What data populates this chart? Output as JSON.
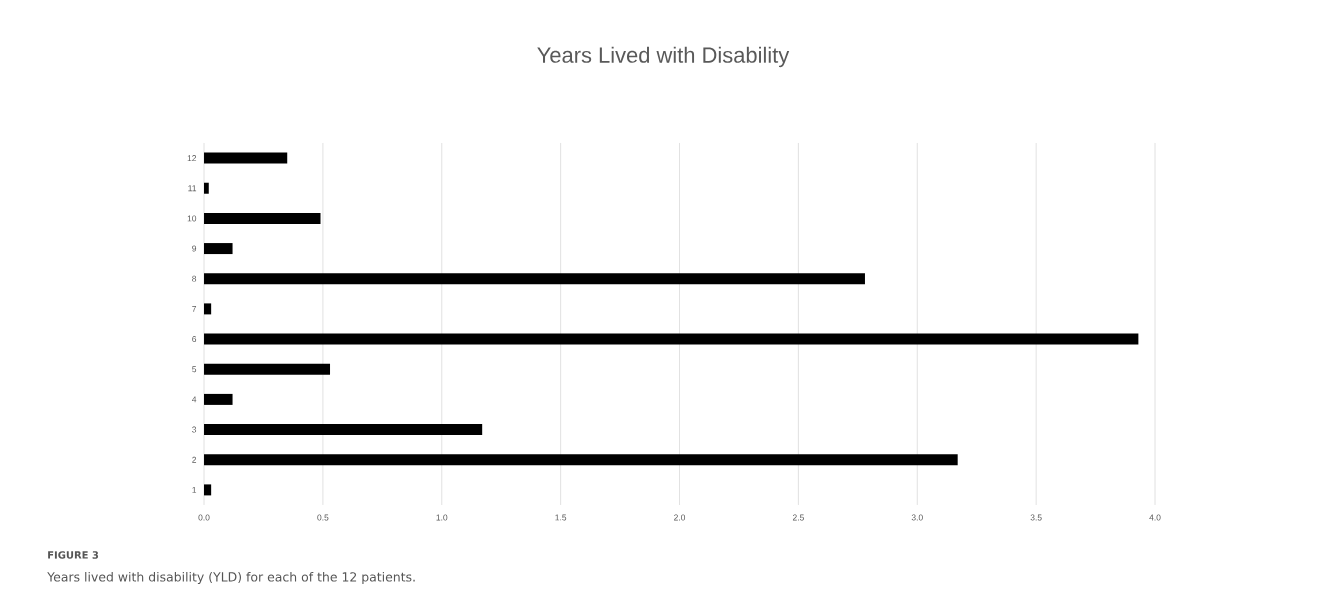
{
  "chart_data": {
    "type": "bar",
    "orientation": "horizontal",
    "title": "Years Lived with Disability",
    "categories": [
      "12",
      "11",
      "10",
      "9",
      "8",
      "7",
      "6",
      "5",
      "4",
      "3",
      "2",
      "1"
    ],
    "values": [
      0.35,
      0.02,
      0.49,
      0.12,
      2.78,
      0.03,
      3.93,
      0.53,
      0.12,
      1.17,
      3.17,
      0.03
    ],
    "color": "#000000",
    "xlim": [
      0,
      4.0
    ],
    "xticks": [
      {
        "value": 0,
        "label": "0.0"
      },
      0.5,
      {
        "value": 1,
        "label": "1.0"
      },
      1.5,
      {
        "value": 2,
        "label": "2.0"
      },
      2.5,
      {
        "value": 3,
        "label": "3.0"
      },
      3.5,
      {
        "value": 4,
        "label": "4.0"
      }
    ],
    "grid": "x",
    "annotations": [
      "FIGURE 3",
      "Years lived with disability (YLD) for each of the 12 patients."
    ]
  }
}
